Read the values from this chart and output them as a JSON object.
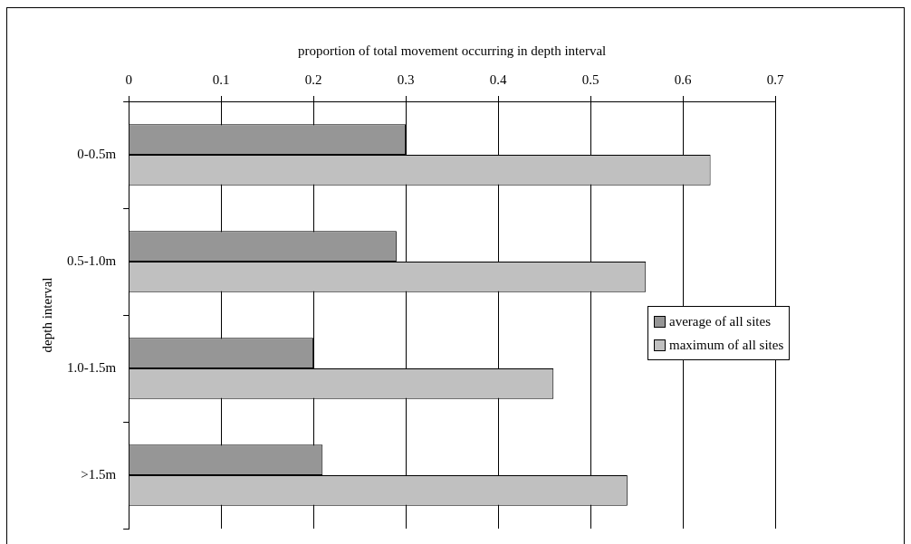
{
  "chart_data": {
    "type": "bar",
    "orientation": "horizontal",
    "xlabel": "proportion of total movement occurring in depth interval",
    "ylabel": "depth interval",
    "categories": [
      "0-0.5m",
      "0.5-1.0m",
      "1.0-1.5m",
      ">1.5m"
    ],
    "series": [
      {
        "name": "average of all sites",
        "color": "#969696",
        "values": [
          0.3,
          0.29,
          0.2,
          0.21
        ]
      },
      {
        "name": "maximum of all sites",
        "color": "#c0c0c0",
        "values": [
          0.63,
          0.56,
          0.46,
          0.54
        ]
      }
    ],
    "xlim": [
      0,
      0.7
    ],
    "xticks": [
      0,
      0.1,
      0.2,
      0.3,
      0.4,
      0.5,
      0.6,
      0.7
    ],
    "grid": "x",
    "legend": "right"
  }
}
